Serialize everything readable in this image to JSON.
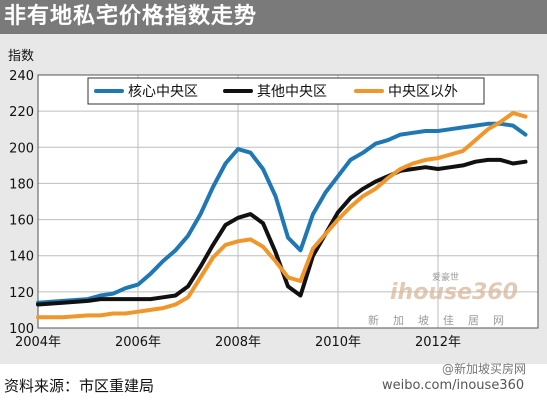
{
  "title": "非有地私宅价格指数走势",
  "source": "资料来源：市区重建局",
  "watermark": {
    "weibo": "weibo.com/inouse360",
    "user": "@新加坡买房网",
    "logo_main": "ihouse360",
    "logo_top": "爱豪世",
    "logo_sub": "新加坡佳居网"
  },
  "colors": {
    "core": "#1f78b4",
    "other": "#111111",
    "outside": "#f0962a",
    "background": "#e8e8e8",
    "title_bar": "#7a7a7a"
  },
  "chart_data": {
    "type": "line",
    "title": "非有地私宅价格指数走势",
    "ylabel": "指数",
    "xlabel": "",
    "ylim": [
      100,
      240
    ],
    "yticks": [
      100,
      120,
      140,
      160,
      180,
      200,
      220,
      240
    ],
    "xlim": [
      2004.0,
      2014.0
    ],
    "xticks": [
      {
        "value": 2004,
        "label": "2004年"
      },
      {
        "value": 2006,
        "label": "2006年"
      },
      {
        "value": 2008,
        "label": "2008年"
      },
      {
        "value": 2010,
        "label": "2010年"
      },
      {
        "value": 2012,
        "label": "2012年"
      }
    ],
    "grid": true,
    "legend": "top",
    "series": [
      {
        "name": "核心中央区",
        "color": "#1f78b4",
        "x": [
          2004.0,
          2004.5,
          2005.0,
          2005.25,
          2005.5,
          2005.75,
          2006.0,
          2006.25,
          2006.5,
          2006.75,
          2007.0,
          2007.25,
          2007.5,
          2007.75,
          2008.0,
          2008.25,
          2008.5,
          2008.75,
          2009.0,
          2009.25,
          2009.5,
          2009.75,
          2010.0,
          2010.25,
          2010.5,
          2010.75,
          2011.0,
          2011.25,
          2011.5,
          2011.75,
          2012.0,
          2012.25,
          2012.5,
          2012.75,
          2013.0,
          2013.25,
          2013.5,
          2013.75
        ],
        "y": [
          114,
          115,
          116,
          118,
          119,
          122,
          124,
          130,
          137,
          143,
          151,
          163,
          178,
          191,
          199,
          197,
          188,
          173,
          150,
          143,
          163,
          175,
          184,
          193,
          197,
          202,
          204,
          207,
          208,
          209,
          209,
          210,
          211,
          212,
          213,
          213,
          212,
          207
        ]
      },
      {
        "name": "其他中央区",
        "color": "#111111",
        "x": [
          2004.0,
          2004.5,
          2005.0,
          2005.25,
          2005.5,
          2005.75,
          2006.0,
          2006.25,
          2006.5,
          2006.75,
          2007.0,
          2007.25,
          2007.5,
          2007.75,
          2008.0,
          2008.25,
          2008.5,
          2008.75,
          2009.0,
          2009.25,
          2009.5,
          2009.75,
          2010.0,
          2010.25,
          2010.5,
          2010.75,
          2011.0,
          2011.25,
          2011.5,
          2011.75,
          2012.0,
          2012.25,
          2012.5,
          2012.75,
          2013.0,
          2013.25,
          2013.5,
          2013.75
        ],
        "y": [
          113,
          114,
          115,
          116,
          116,
          116,
          116,
          116,
          117,
          118,
          123,
          134,
          146,
          157,
          161,
          163,
          158,
          142,
          123,
          118,
          140,
          152,
          164,
          172,
          177,
          181,
          184,
          187,
          188,
          189,
          188,
          189,
          190,
          192,
          193,
          193,
          191,
          192
        ]
      },
      {
        "name": "中央区以外",
        "color": "#f0962a",
        "x": [
          2004.0,
          2004.5,
          2005.0,
          2005.25,
          2005.5,
          2005.75,
          2006.0,
          2006.25,
          2006.5,
          2006.75,
          2007.0,
          2007.25,
          2007.5,
          2007.75,
          2008.0,
          2008.25,
          2008.5,
          2008.75,
          2009.0,
          2009.25,
          2009.5,
          2009.75,
          2010.0,
          2010.25,
          2010.5,
          2010.75,
          2011.0,
          2011.25,
          2011.5,
          2011.75,
          2012.0,
          2012.25,
          2012.5,
          2012.75,
          2013.0,
          2013.25,
          2013.5,
          2013.75
        ],
        "y": [
          106,
          106,
          107,
          107,
          108,
          108,
          109,
          110,
          111,
          113,
          117,
          128,
          139,
          146,
          148,
          149,
          145,
          137,
          128,
          126,
          144,
          152,
          160,
          167,
          173,
          177,
          183,
          188,
          191,
          193,
          194,
          196,
          198,
          204,
          210,
          214,
          219,
          217
        ]
      }
    ]
  }
}
